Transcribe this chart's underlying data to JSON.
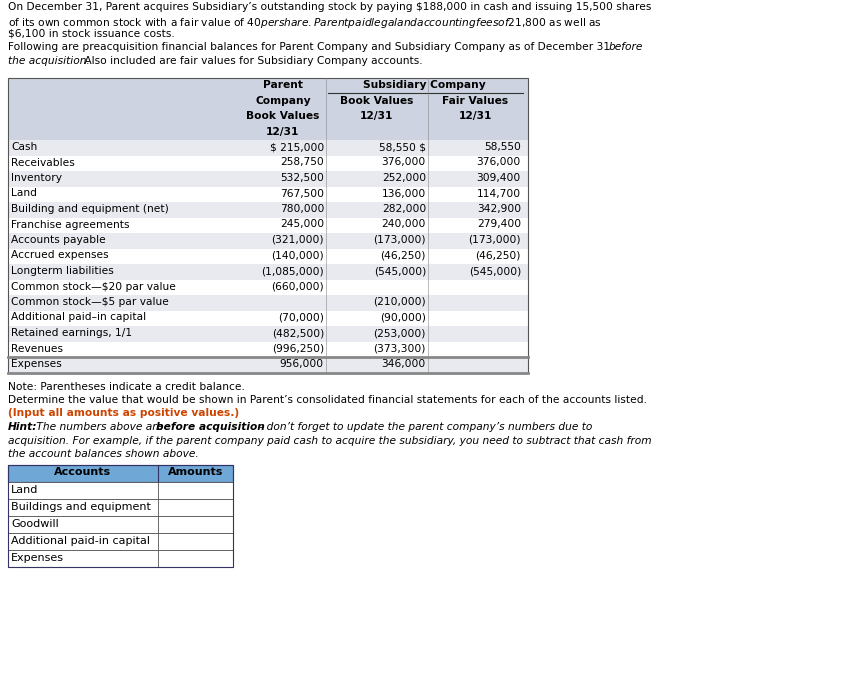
{
  "title_text": "On December 31, Parent acquires Subsidiary’s outstanding stock by paying $188,000 in cash and issuing 15,500 shares\nof its own common stock with a fair value of $40 per share. Parent paid legal and accounting fees of $21,800 as well as\n$6,100 in stock issuance costs.",
  "following_normal": "Following are preacquisition financial balances for Parent Company and Subsidiary Company as of December 31 ",
  "following_italic_before": "before",
  "following_line2_italic": "the acquisition.",
  "following_line2_normal": " Also included are fair values for Subsidiary Company accounts.",
  "table_rows": [
    [
      "Cash",
      "$ 215,000",
      "58,550 $",
      "58,550"
    ],
    [
      "Receivables",
      "258,750",
      "376,000",
      "376,000"
    ],
    [
      "Inventory",
      "532,500",
      "252,000",
      "309,400"
    ],
    [
      "Land",
      "767,500",
      "136,000",
      "114,700"
    ],
    [
      "Building and equipment (net)",
      "780,000",
      "282,000",
      "342,900"
    ],
    [
      "Franchise agreements",
      "245,000",
      "240,000",
      "279,400"
    ],
    [
      "Accounts payable",
      "(321,000)",
      "(173,000)",
      "(173,000)"
    ],
    [
      "Accrued expenses",
      "(140,000)",
      "(46,250)",
      "(46,250)"
    ],
    [
      "Longterm liabilities",
      "(1,085,000)",
      "(545,000)",
      "(545,000)"
    ],
    [
      "Common stock—$20 par value",
      "(660,000)",
      "",
      ""
    ],
    [
      "Common stock—$5 par value",
      "",
      "(210,000)",
      ""
    ],
    [
      "Additional paid–in capital",
      "(70,000)",
      "(90,000)",
      ""
    ],
    [
      "Retained earnings, 1/1",
      "(482,500)",
      "(253,000)",
      ""
    ],
    [
      "Revenues",
      "(996,250)",
      "(373,300)",
      ""
    ],
    [
      "Expenses",
      "956,000",
      "346,000",
      ""
    ]
  ],
  "note_text": "Note: Parentheses indicate a credit balance.",
  "determine_text": "Determine the value that would be shown in Parent’s consolidated financial statements for each of the accounts listed.",
  "input_text": "(Input all amounts as positive values.)",
  "hint_bold_prefix": "Hint: ",
  "hint_italic1": "The numbers above are ",
  "hint_bold_italic": "before acquisition",
  "hint_italic2": " - don’t forget to update the parent company’s numbers due to",
  "hint_line2": "acquisition. For example, if the parent company paid cash to acquire the subsidiary, you need to subtract that cash from",
  "hint_line3": "the account balances shown above.",
  "bottom_rows": [
    "Land",
    "Buildings and equipment",
    "Goodwill",
    "Additional paid-in capital",
    "Expenses"
  ],
  "header_bg": "#cdd3e0",
  "row_bg_alt": "#e8eaf0",
  "row_bg_white": "#ffffff",
  "bottom_header_bg": "#6fa8d6",
  "input_color": "#cc4400",
  "table_border": "#555555"
}
